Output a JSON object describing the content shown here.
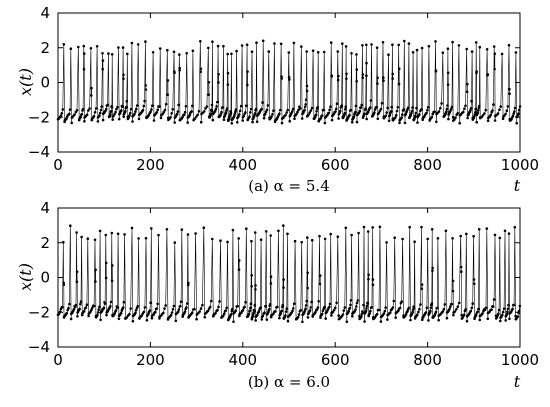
{
  "chart_data": [
    {
      "type": "line",
      "caption": "(a) α = 5.4",
      "xlabel": "t",
      "ylabel": "x(t)",
      "xlim": [
        0,
        1000
      ],
      "ylim": [
        -4,
        4
      ],
      "xticks": [
        0,
        200,
        400,
        600,
        800,
        1000
      ],
      "yticks": [
        4,
        2,
        0,
        -2,
        -4
      ],
      "xtick_labels": [
        "0",
        "200",
        "400",
        "600",
        "800",
        "1000"
      ],
      "ytick_labels": [
        "4",
        "2",
        "0",
        "−2",
        "−4"
      ],
      "grid": false,
      "marker": "dot",
      "t_start": 0,
      "t_end": 1000,
      "peak_range": [
        1.6,
        2.4
      ],
      "trough_range": [
        -2.2,
        -1.8
      ],
      "approx_spike_count": 80
    },
    {
      "type": "line",
      "caption": "(b) α = 6.0",
      "xlabel": "t",
      "ylabel": "x(t)",
      "xlim": [
        0,
        1000
      ],
      "ylim": [
        -4,
        4
      ],
      "xticks": [
        0,
        200,
        400,
        600,
        800,
        1000
      ],
      "yticks": [
        4,
        2,
        0,
        -2,
        -4
      ],
      "xtick_labels": [
        "0",
        "200",
        "400",
        "600",
        "800",
        "1000"
      ],
      "ytick_labels": [
        "4",
        "2",
        "0",
        "−2",
        "−4"
      ],
      "grid": false,
      "marker": "dot",
      "t_start": 0,
      "t_end": 1000,
      "peak_range": [
        2.0,
        3.0
      ],
      "trough_range": [
        -2.4,
        -2.0
      ],
      "approx_spike_count": 75
    }
  ]
}
